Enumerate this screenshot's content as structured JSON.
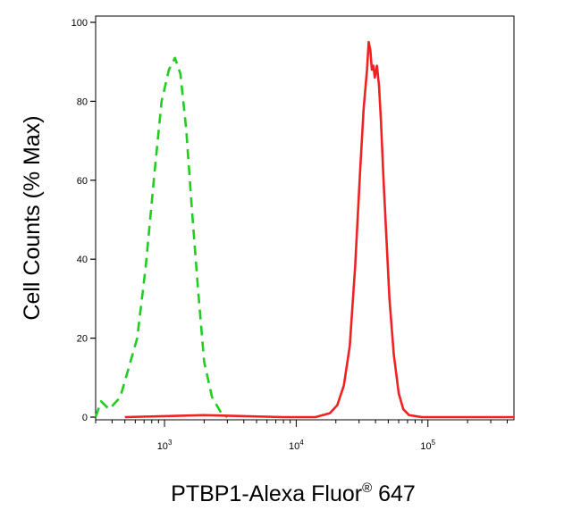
{
  "chart_data": {
    "type": "line",
    "xlabel": "PTBP1-Alexa Fluor",
    "xlabel_superscript": "®",
    "xlabel_suffix": " 647",
    "ylabel": "Cell Counts (% Max)",
    "x_scale": "log",
    "xlim": [
      300,
      450000
    ],
    "ylim": [
      0,
      100
    ],
    "x_ticks": [
      {
        "value": 1000,
        "base": "10",
        "exp": "3"
      },
      {
        "value": 10000,
        "base": "10",
        "exp": "4"
      },
      {
        "value": 100000,
        "base": "10",
        "exp": "5"
      }
    ],
    "y_ticks": [
      "0",
      "20",
      "40",
      "60",
      "80",
      "100"
    ],
    "grid": false,
    "series": [
      {
        "color": "#22cc22",
        "dashed": true,
        "x": [
          300,
          330,
          380,
          460,
          530,
          620,
          720,
          840,
          950,
          1080,
          1200,
          1320,
          1460,
          1620,
          1800,
          2000,
          2300,
          2700,
          3000
        ],
        "y": [
          0,
          4,
          2,
          5,
          12,
          20,
          38,
          62,
          80,
          88,
          91,
          87,
          73,
          52,
          32,
          14,
          5,
          1,
          0
        ]
      },
      {
        "color": "#ee2222",
        "dashed": false,
        "x": [
          500,
          2000,
          8000,
          14000,
          18000,
          20500,
          23000,
          25500,
          28000,
          30500,
          32500,
          34500,
          35500,
          36500,
          37500,
          38500,
          39500,
          41000,
          42500,
          44000,
          46000,
          48500,
          51000,
          55000,
          60000,
          65000,
          72000,
          90000,
          450000
        ],
        "y": [
          0,
          0.5,
          0,
          0,
          1,
          3,
          8,
          18,
          38,
          62,
          78,
          88,
          95,
          93,
          88,
          89,
          86,
          89,
          84,
          75,
          60,
          45,
          30,
          16,
          6,
          2,
          0.5,
          0,
          0
        ]
      }
    ]
  }
}
